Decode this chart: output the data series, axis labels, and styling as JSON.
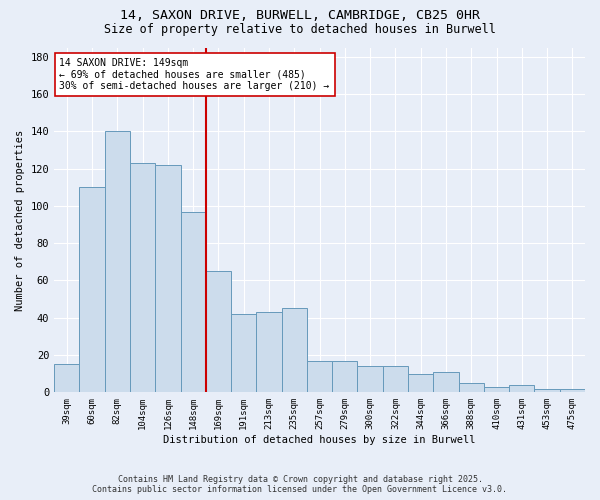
{
  "title1": "14, SAXON DRIVE, BURWELL, CAMBRIDGE, CB25 0HR",
  "title2": "Size of property relative to detached houses in Burwell",
  "xlabel": "Distribution of detached houses by size in Burwell",
  "ylabel": "Number of detached properties",
  "categories": [
    "39sqm",
    "60sqm",
    "82sqm",
    "104sqm",
    "126sqm",
    "148sqm",
    "169sqm",
    "191sqm",
    "213sqm",
    "235sqm",
    "257sqm",
    "279sqm",
    "300sqm",
    "322sqm",
    "344sqm",
    "366sqm",
    "388sqm",
    "410sqm",
    "431sqm",
    "453sqm",
    "475sqm"
  ],
  "values": [
    15,
    110,
    140,
    123,
    122,
    97,
    65,
    42,
    43,
    45,
    17,
    17,
    14,
    14,
    10,
    11,
    5,
    3,
    4,
    2,
    2
  ],
  "bar_color": "#ccdcec",
  "bar_edge_color": "#6699bb",
  "vline_x_idx": 5,
  "vline_color": "#cc0000",
  "annotation_text": "14 SAXON DRIVE: 149sqm\n← 69% of detached houses are smaller (485)\n30% of semi-detached houses are larger (210) →",
  "annotation_box_color": "#ffffff",
  "annotation_box_edge": "#cc0000",
  "ylim": [
    0,
    185
  ],
  "yticks": [
    0,
    20,
    40,
    60,
    80,
    100,
    120,
    140,
    160,
    180
  ],
  "footer1": "Contains HM Land Registry data © Crown copyright and database right 2025.",
  "footer2": "Contains public sector information licensed under the Open Government Licence v3.0.",
  "bg_color": "#e8eef8"
}
